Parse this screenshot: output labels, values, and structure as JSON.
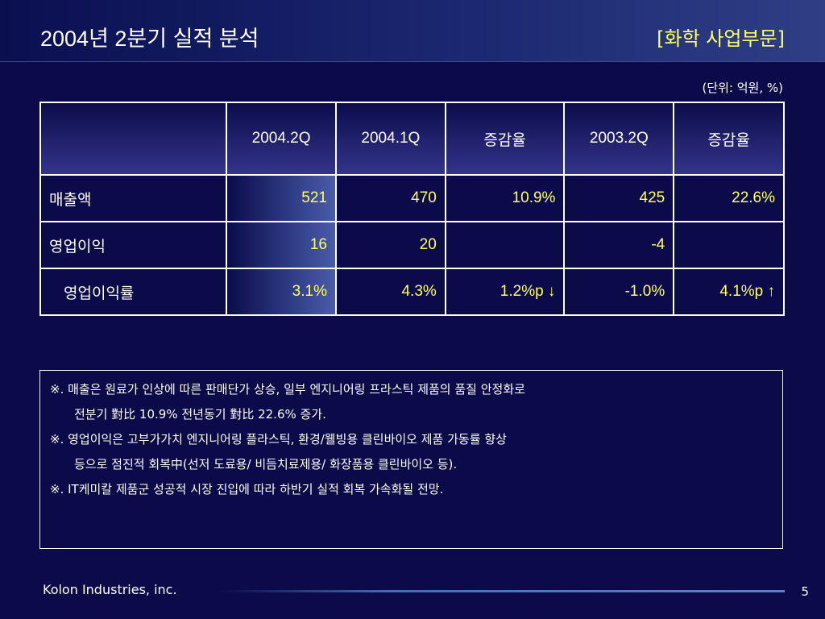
{
  "header": {
    "title": "2004년 2분기 실적 분석",
    "division": "[화학 사업부문]"
  },
  "unit": "(단위: 억원, %)",
  "table": {
    "columns": [
      "",
      "2004.2Q",
      "2004.1Q",
      "증감율",
      "2003.2Q",
      "증감율"
    ],
    "rows": [
      {
        "label": "매출액",
        "cells": [
          "521",
          "470",
          "10.9%",
          "425",
          "22.6%"
        ]
      },
      {
        "label": "영업이익",
        "cells": [
          "16",
          "20",
          "",
          "-4",
          ""
        ]
      },
      {
        "label": "영업이익률",
        "cells": [
          "3.1%",
          "4.3%",
          "1.2%p ↓",
          "-1.0%",
          "4.1%p ↑"
        ]
      }
    ]
  },
  "notes": [
    "※. 매출은 원료가 인상에 따른 판매단가 상승, 일부 엔지니어링 프라스틱 제품의 품질 안정화로",
    "전분기 對比 10.9% 전년동기 對比 22.6% 증가.",
    "※. 영업이익은 고부가가치 엔지니어링 플라스틱, 환경/웰빙용 클린바이오 제품 가동률 향상",
    "등으로 점진적 회복中(선저 도료용/ 비듬치료제용/ 화장품용 클린바이오 등).",
    "※. IT케미칼 제품군 성공적 시장 진입에 따라 하반기 실적 회복 가속화될 전망."
  ],
  "footer": {
    "company": "Kolon Industries, inc.",
    "page": "5"
  },
  "colors": {
    "background": "#0b0b4a",
    "accent_yellow": "#ffff66"
  }
}
